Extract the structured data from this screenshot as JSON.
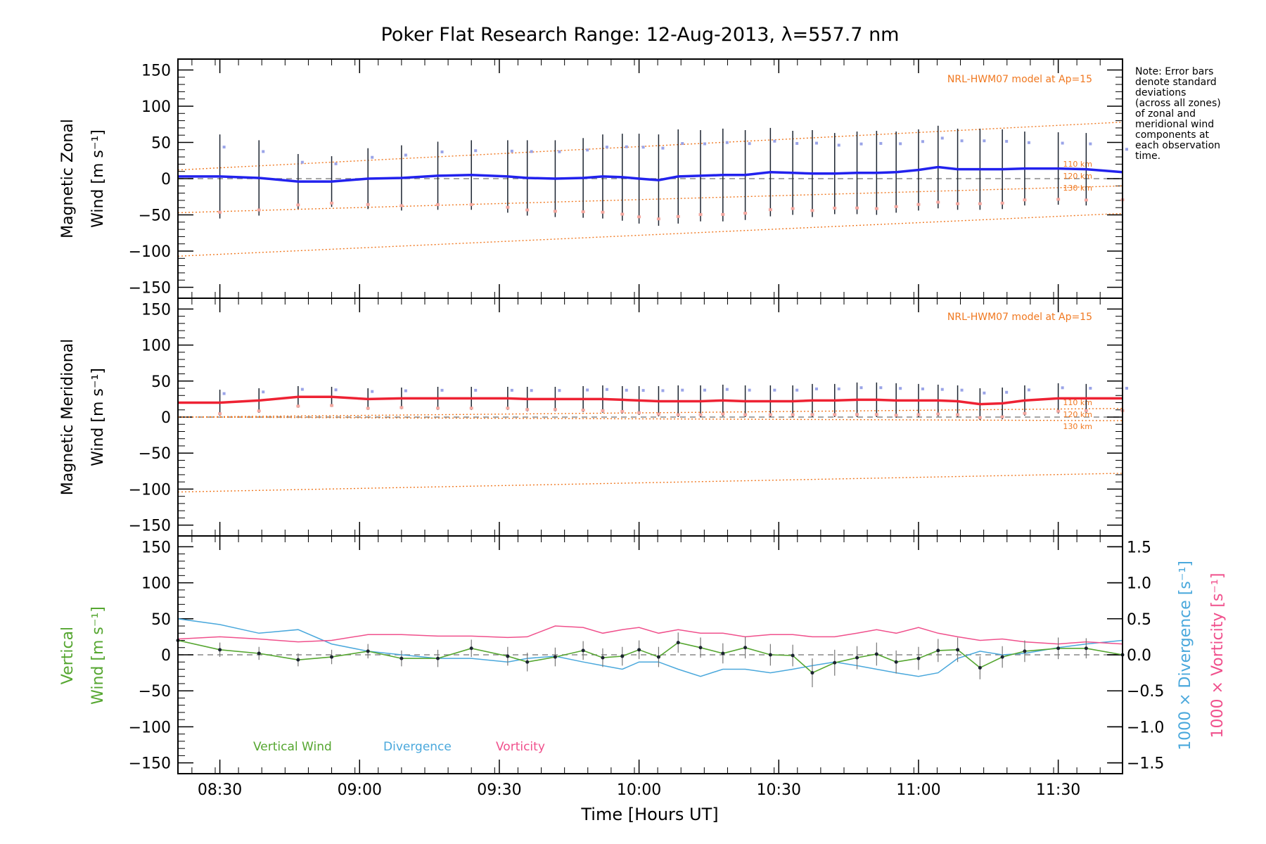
{
  "chart_data": {
    "type": "line",
    "title": "Poker Flat Research Range: 12-Aug-2013, λ=557.7 nm",
    "note": [
      "Note: Error bars",
      "denote standard",
      "deviations",
      "(across all zones)",
      "of zonal and",
      "meridional wind",
      "components at",
      "each observation",
      "time."
    ],
    "xlabel": "Time [Hours UT]",
    "xlim": [
      8.35,
      11.73
    ],
    "xticks": [
      8.5,
      9.0,
      9.5,
      10.0,
      10.5,
      11.0,
      11.5
    ],
    "xtick_labels": [
      "08:30",
      "09:00",
      "09:30",
      "10:00",
      "10:30",
      "11:00",
      "11:30"
    ],
    "ylim": [
      -165,
      165
    ],
    "yticks": [
      -150,
      -100,
      -50,
      0,
      50,
      100,
      150
    ],
    "ytick_labels": [
      "−150",
      "−100",
      "−50",
      "0",
      "50",
      "100",
      "150"
    ],
    "model_label": "NRL-HWM07 model at Ap=15",
    "model_alt_labels": [
      "110 km",
      "120 km",
      "130 km"
    ],
    "colors": {
      "zonal": "#2222ee",
      "meridional": "#ee2233",
      "model": "#f07820",
      "vertical": "#55a630",
      "divergence": "#4aa8dc",
      "vorticity": "#f0508c",
      "errbar": "#1c2430"
    },
    "obs_times": [
      8.5,
      8.64,
      8.78,
      8.9,
      9.03,
      9.15,
      9.28,
      9.4,
      9.53,
      9.6,
      9.7,
      9.8,
      9.87,
      9.94,
      10.0,
      10.07,
      10.14,
      10.22,
      10.3,
      10.38,
      10.47,
      10.55,
      10.62,
      10.7,
      10.78,
      10.85,
      10.92,
      11.0,
      11.07,
      11.14,
      11.22,
      11.3,
      11.38,
      11.5,
      11.6,
      11.73
    ],
    "panels": [
      {
        "id": "zonal",
        "ylabel_line1": "Magnetic Zonal",
        "ylabel_line2": "Wind [m s⁻¹]",
        "series": [
          {
            "name": "Zonal wind",
            "x": [
              8.35,
              8.5,
              8.64,
              8.78,
              8.9,
              9.03,
              9.15,
              9.28,
              9.4,
              9.53,
              9.6,
              9.7,
              9.8,
              9.87,
              9.94,
              10.0,
              10.07,
              10.14,
              10.22,
              10.3,
              10.38,
              10.47,
              10.55,
              10.62,
              10.7,
              10.78,
              10.85,
              10.92,
              11.0,
              11.07,
              11.14,
              11.22,
              11.3,
              11.38,
              11.5,
              11.6,
              11.73
            ],
            "values": [
              3,
              3,
              1,
              -4,
              -4,
              0,
              1,
              4,
              5,
              3,
              1,
              0,
              1,
              3,
              2,
              0,
              -2,
              3,
              4,
              5,
              5,
              9,
              8,
              7,
              7,
              8,
              8,
              9,
              12,
              16,
              13,
              13,
              13,
              14,
              14,
              13,
              9
            ]
          }
        ],
        "errors": [
          58,
          52,
          38,
          35,
          42,
          45,
          47,
          48,
          50,
          52,
          53,
          55,
          58,
          60,
          62,
          63,
          65,
          63,
          64,
          62,
          61,
          58,
          60,
          56,
          57,
          58,
          56,
          56,
          57,
          56,
          56,
          55,
          51,
          50,
          50,
          45
        ],
        "model": [
          {
            "name": "110 km",
            "y0": 12,
            "y1": 78
          },
          {
            "name": "120 km",
            "y0": -47,
            "y1": -10
          },
          {
            "name": "130 km",
            "y0": -107,
            "y1": -48
          }
        ]
      },
      {
        "id": "meridional",
        "ylabel_line1": "Magnetic Meridional",
        "ylabel_line2": "Wind [m s⁻¹]",
        "series": [
          {
            "name": "Meridional wind",
            "x": [
              8.35,
              8.5,
              8.64,
              8.78,
              8.9,
              9.03,
              9.15,
              9.28,
              9.4,
              9.53,
              9.6,
              9.7,
              9.8,
              9.87,
              9.94,
              10.0,
              10.07,
              10.14,
              10.22,
              10.3,
              10.38,
              10.47,
              10.55,
              10.62,
              10.7,
              10.78,
              10.85,
              10.92,
              11.0,
              11.07,
              11.14,
              11.22,
              11.3,
              11.38,
              11.5,
              11.6,
              11.73
            ],
            "values": [
              20,
              20,
              23,
              28,
              28,
              25,
              26,
              26,
              26,
              26,
              25,
              25,
              25,
              25,
              24,
              23,
              22,
              22,
              22,
              23,
              22,
              22,
              22,
              23,
              23,
              24,
              24,
              23,
              23,
              23,
              22,
              18,
              19,
              23,
              26,
              26,
              26
            ]
          }
        ],
        "errors": [
          18,
          17,
          15,
          14,
          15,
          15,
          16,
          16,
          16,
          17,
          17,
          18,
          19,
          19,
          20,
          21,
          22,
          22,
          22,
          22,
          22,
          22,
          23,
          23,
          24,
          24,
          24,
          23,
          22,
          22,
          22,
          22,
          21,
          21,
          20,
          20
        ],
        "model": [
          {
            "name": "110 km",
            "y0": 0,
            "y1": 12
          },
          {
            "name": "120 km",
            "y0": 0,
            "y1": -5
          },
          {
            "name": "130 km",
            "y0": -104,
            "y1": -78
          }
        ]
      },
      {
        "id": "vertical",
        "ylabel_line1": "Vertical",
        "ylabel_line2": "Wind [m s⁻¹]",
        "right_ylabel_1": "1000 × Divergence [s⁻¹]",
        "right_ylabel_2": "1000 × Vorticity [s⁻¹]",
        "right_ylim": [
          -1.65,
          1.65
        ],
        "right_yticks": [
          -1.5,
          -1.0,
          -0.5,
          0.0,
          0.5,
          1.0,
          1.5
        ],
        "right_ytick_labels": [
          "−1.5",
          "−1.0",
          "−0.5",
          "0.0",
          "0.5",
          "1.0",
          "1.5"
        ],
        "legend": [
          "Vertical Wind",
          "Divergence",
          "Vorticity"
        ],
        "vertical": {
          "x": [
            8.35,
            8.5,
            8.64,
            8.78,
            8.9,
            9.03,
            9.15,
            9.28,
            9.4,
            9.53,
            9.6,
            9.7,
            9.8,
            9.87,
            9.94,
            10.0,
            10.07,
            10.14,
            10.22,
            10.3,
            10.38,
            10.47,
            10.55,
            10.62,
            10.7,
            10.78,
            10.85,
            10.92,
            11.0,
            11.07,
            11.14,
            11.22,
            11.3,
            11.38,
            11.5,
            11.6,
            11.73
          ],
          "values": [
            20,
            7,
            2,
            -7,
            -3,
            5,
            -5,
            -5,
            9,
            -2,
            -10,
            -3,
            6,
            -4,
            -2,
            7,
            -3,
            17,
            10,
            2,
            10,
            0,
            -1,
            -25,
            -11,
            -4,
            1,
            -10,
            -5,
            6,
            7,
            -18,
            -3,
            5,
            9,
            9,
            0
          ],
          "errors": [
            12,
            10,
            9,
            9,
            10,
            10,
            11,
            12,
            12,
            13,
            13,
            13,
            13,
            13,
            13,
            13,
            14,
            14,
            14,
            14,
            15,
            15,
            15,
            20,
            18,
            16,
            16,
            16,
            16,
            16,
            17,
            16,
            15,
            15,
            15,
            14,
            14
          ]
        },
        "divergence": {
          "x": [
            8.35,
            8.5,
            8.64,
            8.78,
            8.9,
            9.03,
            9.15,
            9.28,
            9.4,
            9.53,
            9.6,
            9.7,
            9.8,
            9.87,
            9.94,
            10.0,
            10.07,
            10.14,
            10.22,
            10.3,
            10.38,
            10.47,
            10.55,
            10.62,
            10.7,
            10.78,
            10.85,
            10.92,
            11.0,
            11.07,
            11.14,
            11.22,
            11.3,
            11.38,
            11.5,
            11.6,
            11.73
          ],
          "values": [
            0.5,
            0.42,
            0.3,
            0.35,
            0.15,
            0.05,
            0.0,
            -0.05,
            -0.05,
            -0.1,
            -0.05,
            -0.02,
            -0.1,
            -0.15,
            -0.2,
            -0.1,
            -0.1,
            -0.2,
            -0.3,
            -0.2,
            -0.2,
            -0.25,
            -0.2,
            -0.15,
            -0.1,
            -0.15,
            -0.2,
            -0.25,
            -0.3,
            -0.25,
            -0.05,
            0.05,
            0.0,
            0.02,
            0.1,
            0.15,
            0.2
          ]
        },
        "vorticity": {
          "x": [
            8.35,
            8.5,
            8.64,
            8.78,
            8.9,
            9.03,
            9.15,
            9.28,
            9.4,
            9.53,
            9.6,
            9.7,
            9.8,
            9.87,
            9.94,
            10.0,
            10.07,
            10.14,
            10.22,
            10.3,
            10.38,
            10.47,
            10.55,
            10.62,
            10.7,
            10.78,
            10.85,
            10.92,
            11.0,
            11.07,
            11.14,
            11.22,
            11.3,
            11.38,
            11.5,
            11.6,
            11.73
          ],
          "values": [
            0.22,
            0.25,
            0.22,
            0.18,
            0.2,
            0.28,
            0.28,
            0.26,
            0.26,
            0.24,
            0.25,
            0.4,
            0.38,
            0.3,
            0.35,
            0.38,
            0.3,
            0.35,
            0.3,
            0.3,
            0.25,
            0.28,
            0.28,
            0.25,
            0.25,
            0.3,
            0.35,
            0.3,
            0.38,
            0.3,
            0.25,
            0.2,
            0.22,
            0.18,
            0.15,
            0.18,
            0.15
          ]
        }
      }
    ]
  }
}
